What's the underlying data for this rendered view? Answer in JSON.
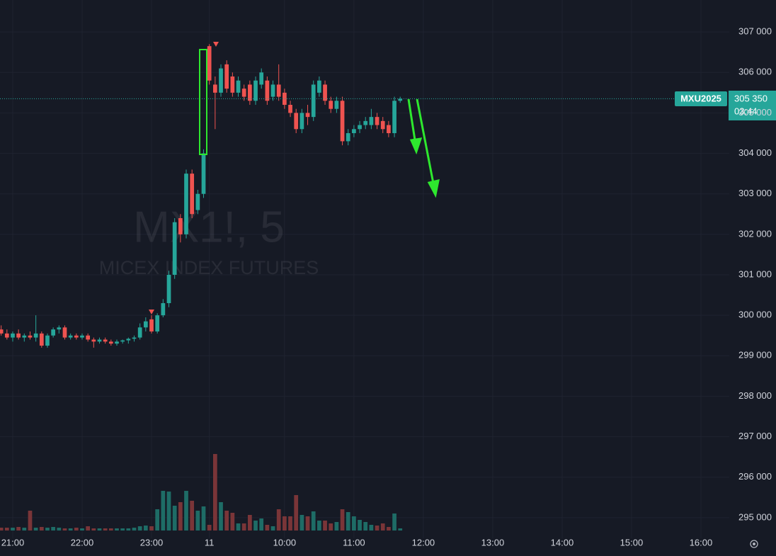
{
  "chart_data": {
    "type": "candlestick",
    "watermark_title": "MX1!, 5",
    "watermark_subtitle": "MICEX INDEX FUTURES",
    "symbol": "MXU2025",
    "countdown": "03:44",
    "last_price": {
      "value": 305350,
      "label": "305 350"
    },
    "up_color": "#26a69a",
    "down_color": "#ef5350",
    "volume_up_color": "#1e6c66",
    "volume_down_color": "#7a3538",
    "grid": true,
    "x": [
      -2,
      -1,
      0,
      1,
      2,
      3,
      4,
      5,
      6,
      7,
      8,
      9,
      10,
      11,
      12,
      13,
      14,
      15,
      16,
      17,
      18,
      19,
      20,
      21,
      22,
      23,
      24,
      25,
      26,
      27,
      28,
      29,
      30,
      31,
      32,
      33,
      34,
      35,
      36,
      37,
      38,
      39,
      40,
      41,
      42,
      43,
      44,
      45,
      46,
      47,
      48,
      49,
      50,
      51,
      52,
      53,
      54,
      55,
      56,
      57,
      58,
      59,
      60,
      61,
      62,
      63,
      64,
      65,
      66,
      67
    ],
    "open": [
      299650,
      299550,
      299450,
      299550,
      299450,
      299500,
      299450,
      299550,
      299250,
      299500,
      299650,
      299700,
      299450,
      299500,
      299450,
      299500,
      299400,
      299350,
      299400,
      299350,
      299300,
      299350,
      299380,
      299420,
      299450,
      299700,
      299900,
      299600,
      300000,
      300300,
      301000,
      302400,
      302000,
      303500,
      302600,
      303000,
      306650,
      305700,
      305500,
      306200,
      305900,
      305500,
      305600,
      305700,
      305300,
      305700,
      305800,
      305400,
      305700,
      305500,
      305200,
      305000,
      304600,
      305000,
      304900,
      305500,
      305700,
      305300,
      305100,
      305300,
      304300,
      304500,
      304600,
      304700,
      304700,
      304900,
      304800,
      304700,
      304500,
      305300
    ],
    "high": [
      299750,
      299650,
      299600,
      299650,
      299550,
      299600,
      300000,
      299600,
      299550,
      299700,
      299750,
      299750,
      299550,
      299550,
      299550,
      299550,
      299450,
      299450,
      299450,
      299400,
      299400,
      299400,
      299450,
      299500,
      299800,
      299950,
      300000,
      300050,
      300400,
      301100,
      302400,
      302500,
      303600,
      303600,
      303100,
      304100,
      306700,
      305900,
      306200,
      306300,
      306000,
      305900,
      305700,
      305800,
      305900,
      306100,
      305900,
      305800,
      306200,
      305600,
      305300,
      305100,
      305100,
      305200,
      305800,
      305900,
      305800,
      305400,
      305400,
      305400,
      304600,
      304700,
      304800,
      304900,
      305100,
      305000,
      304900,
      304800,
      305400,
      305400
    ],
    "low": [
      299500,
      299400,
      299350,
      299400,
      299350,
      299400,
      299350,
      299200,
      299200,
      299450,
      299550,
      299400,
      299400,
      299400,
      299400,
      299350,
      299200,
      299300,
      299300,
      299250,
      299250,
      299300,
      299300,
      299350,
      299400,
      299600,
      299550,
      299550,
      299950,
      300200,
      300900,
      301800,
      301900,
      302400,
      302500,
      302900,
      305700,
      304600,
      305400,
      305500,
      305400,
      305400,
      305300,
      305200,
      305200,
      305600,
      305200,
      305300,
      305300,
      305100,
      304900,
      304500,
      304500,
      304700,
      304800,
      305400,
      305200,
      305000,
      305000,
      304200,
      304200,
      304400,
      304500,
      304600,
      304600,
      304600,
      304500,
      304400,
      304400,
      305250
    ],
    "close": [
      299550,
      299450,
      299550,
      299450,
      299500,
      299450,
      299550,
      299250,
      299500,
      299650,
      299700,
      299450,
      299500,
      299450,
      299500,
      299400,
      299350,
      299400,
      299350,
      299300,
      299350,
      299380,
      299420,
      299450,
      299700,
      299850,
      299600,
      300000,
      300300,
      301000,
      302300,
      302000,
      303500,
      302500,
      303000,
      304000,
      305800,
      305500,
      306100,
      305600,
      305500,
      305800,
      305400,
      305300,
      305800,
      306000,
      305300,
      305700,
      305400,
      305200,
      305000,
      304600,
      305000,
      304900,
      305700,
      305800,
      305300,
      305100,
      305300,
      304300,
      304500,
      304600,
      304700,
      304800,
      304900,
      304700,
      304600,
      304500,
      305300,
      305350
    ],
    "volume": [
      4,
      4,
      4,
      5,
      4,
      28,
      4,
      5,
      4,
      5,
      4,
      3,
      3,
      4,
      3,
      6,
      3,
      3,
      3,
      3,
      3,
      3,
      3,
      4,
      6,
      7,
      6,
      30,
      56,
      55,
      35,
      40,
      56,
      42,
      28,
      34,
      8,
      108,
      40,
      28,
      25,
      10,
      10,
      22,
      14,
      17,
      8,
      6,
      30,
      20,
      20,
      50,
      22,
      20,
      27,
      14,
      14,
      10,
      12,
      30,
      26,
      20,
      15,
      12,
      8,
      7,
      10,
      5,
      24,
      3
    ],
    "xlim": [
      -2.2,
      123.9
    ],
    "ylim": [
      294490,
      307790
    ],
    "volume_ylim": [
      0,
      110
    ],
    "xticks": [
      {
        "value": 0,
        "label": "21:00"
      },
      {
        "value": 12,
        "label": "22:00"
      },
      {
        "value": 24,
        "label": "23:00"
      },
      {
        "value": 34,
        "label": "11"
      },
      {
        "value": 47,
        "label": "10:00"
      },
      {
        "value": 59,
        "label": "11:00"
      },
      {
        "value": 71,
        "label": "12:00"
      },
      {
        "value": 83,
        "label": "13:00"
      },
      {
        "value": 95,
        "label": "14:00"
      },
      {
        "value": 107,
        "label": "15:00"
      },
      {
        "value": 119,
        "label": "16:00"
      }
    ],
    "yticks": [
      {
        "value": 307000,
        "label": "307 000"
      },
      {
        "value": 306000,
        "label": "306 000"
      },
      {
        "value": 305000,
        "label": "305 000"
      },
      {
        "value": 304000,
        "label": "304 000"
      },
      {
        "value": 303000,
        "label": "303 000"
      },
      {
        "value": 302000,
        "label": "302 000"
      },
      {
        "value": 301000,
        "label": "301 000"
      },
      {
        "value": 300000,
        "label": "300 000"
      },
      {
        "value": 299000,
        "label": "299 000"
      },
      {
        "value": 298000,
        "label": "298 000"
      },
      {
        "value": 297000,
        "label": "297 000"
      },
      {
        "value": 296000,
        "label": "296 000"
      },
      {
        "value": 295000,
        "label": "295 000"
      }
    ]
  }
}
